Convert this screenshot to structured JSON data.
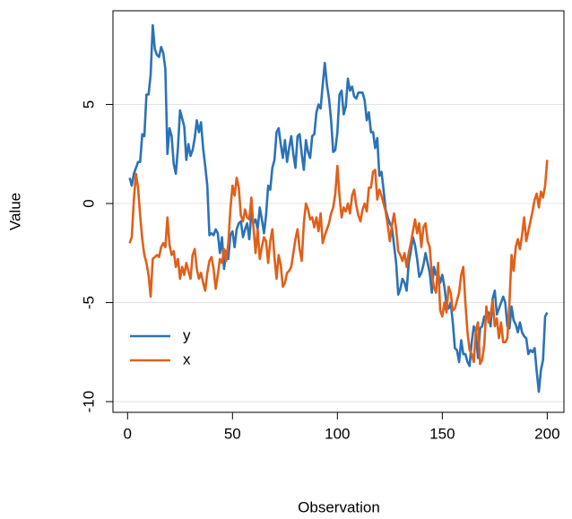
{
  "chart_data": {
    "type": "line",
    "xlabel": "Observation",
    "ylabel": "Value",
    "x": [
      1,
      2,
      3,
      4,
      5,
      6,
      7,
      8,
      9,
      10,
      11,
      12,
      13,
      14,
      15,
      16,
      17,
      18,
      19,
      20,
      21,
      22,
      23,
      24,
      25,
      26,
      27,
      28,
      29,
      30,
      31,
      32,
      33,
      34,
      35,
      36,
      37,
      38,
      39,
      40,
      41,
      42,
      43,
      44,
      45,
      46,
      47,
      48,
      49,
      50,
      51,
      52,
      53,
      54,
      55,
      56,
      57,
      58,
      59,
      60,
      61,
      62,
      63,
      64,
      65,
      66,
      67,
      68,
      69,
      70,
      71,
      72,
      73,
      74,
      75,
      76,
      77,
      78,
      79,
      80,
      81,
      82,
      83,
      84,
      85,
      86,
      87,
      88,
      89,
      90,
      91,
      92,
      93,
      94,
      95,
      96,
      97,
      98,
      99,
      100,
      101,
      102,
      103,
      104,
      105,
      106,
      107,
      108,
      109,
      110,
      111,
      112,
      113,
      114,
      115,
      116,
      117,
      118,
      119,
      120,
      121,
      122,
      123,
      124,
      125,
      126,
      127,
      128,
      129,
      130,
      131,
      132,
      133,
      134,
      135,
      136,
      137,
      138,
      139,
      140,
      141,
      142,
      143,
      144,
      145,
      146,
      147,
      148,
      149,
      150,
      151,
      152,
      153,
      154,
      155,
      156,
      157,
      158,
      159,
      160,
      161,
      162,
      163,
      164,
      165,
      166,
      167,
      168,
      169,
      170,
      171,
      172,
      173,
      174,
      175,
      176,
      177,
      178,
      179,
      180,
      181,
      182,
      183,
      184,
      185,
      186,
      187,
      188,
      189,
      190,
      191,
      192,
      193,
      194,
      195,
      196,
      197,
      198,
      199,
      200
    ],
    "series": [
      {
        "name": "y",
        "color": "#2b72b8",
        "values": [
          1.3,
          0.9,
          1.5,
          1.8,
          2.1,
          2.1,
          3.5,
          3.4,
          5.5,
          5.5,
          6.5,
          9.0,
          7.8,
          7.5,
          7.4,
          7.9,
          7.6,
          6.8,
          2.5,
          3.8,
          3.4,
          2.0,
          1.5,
          2.8,
          4.7,
          4.3,
          3.9,
          2.2,
          3.0,
          2.4,
          2.7,
          3.3,
          4.2,
          3.6,
          4.1,
          2.8,
          1.9,
          0.9,
          -1.6,
          -1.5,
          -1.6,
          -1.3,
          -1.5,
          -2.5,
          -1.7,
          -3.3,
          -2.4,
          -2.8,
          -1.6,
          -1.4,
          -2.2,
          -1.3,
          -1.0,
          -0.9,
          -1.7,
          -1.3,
          -1.0,
          -1.8,
          -0.5,
          -1.0,
          -0.8,
          -1.3,
          -0.2,
          -0.8,
          -1.5,
          -0.6,
          0.9,
          0.7,
          1.8,
          2.2,
          3.6,
          3.8,
          3.0,
          2.3,
          3.2,
          2.1,
          2.8,
          3.4,
          2.5,
          1.8,
          3.4,
          3.5,
          2.5,
          1.7,
          3.2,
          2.6,
          2.3,
          3.4,
          3.5,
          4.6,
          5.0,
          4.8,
          6.0,
          7.1,
          6.0,
          5.3,
          4.2,
          2.6,
          2.7,
          3.6,
          5.5,
          5.7,
          4.5,
          4.9,
          6.3,
          5.7,
          5.9,
          5.4,
          5.3,
          5.6,
          5.6,
          5.6,
          5.2,
          4.2,
          4.6,
          3.6,
          3.6,
          2.8,
          3.3,
          1.4,
          1.6,
          0.7,
          -0.3,
          -0.7,
          -1.0,
          -1.2,
          -2.1,
          -3.0,
          -4.6,
          -4.3,
          -3.8,
          -4.0,
          -4.4,
          -3.0,
          -2.4,
          -1.7,
          -2.1,
          -2.8,
          -3.7,
          -3.5,
          -3.1,
          -2.5,
          -3.0,
          -3.5,
          -4.5,
          -3.2,
          -3.6,
          -3.5,
          -4.0,
          -3.6,
          -4.2,
          -5.1,
          -5.3,
          -5.0,
          -6.0,
          -7.3,
          -7.4,
          -8.0,
          -6.9,
          -7.6,
          -7.6,
          -8.0,
          -8.2,
          -7.0,
          -6.2,
          -6.5,
          -7.8,
          -6.3,
          -6.2,
          -5.7,
          -5.8,
          -5.5,
          -6.2,
          -4.8,
          -4.4,
          -5.6,
          -5.3,
          -5.0,
          -4.7,
          -5.0,
          -6.2,
          -6.3,
          -5.2,
          -5.9,
          -6.1,
          -6.5,
          -6.0,
          -6.5,
          -6.7,
          -6.8,
          -7.6,
          -7.4,
          -7.5,
          -7.3,
          -8.5,
          -9.5,
          -8.4,
          -7.9,
          -5.7,
          -5.5
        ]
      },
      {
        "name": "x",
        "color": "#e0601a",
        "values": [
          -2.0,
          -1.7,
          0.2,
          1.5,
          0.8,
          -0.6,
          -1.8,
          -2.6,
          -3.0,
          -3.6,
          -4.7,
          -2.8,
          -2.7,
          -2.6,
          -2.7,
          -2.2,
          -2.0,
          -2.2,
          -0.7,
          -2.1,
          -2.6,
          -2.4,
          -3.2,
          -2.8,
          -3.8,
          -3.2,
          -3.6,
          -3.0,
          -3.4,
          -3.8,
          -2.6,
          -2.3,
          -3.3,
          -3.8,
          -3.5,
          -4.0,
          -4.4,
          -3.5,
          -2.9,
          -2.7,
          -3.3,
          -4.3,
          -3.6,
          -2.8,
          -3.0,
          -2.3,
          -2.9,
          -2.0,
          -0.3,
          0.9,
          0.4,
          1.3,
          0.8,
          -0.6,
          -0.9,
          -0.3,
          -0.7,
          -0.8,
          0.3,
          -1.2,
          -2.5,
          -1.3,
          -2.8,
          -2.2,
          -1.7,
          -1.9,
          -3.0,
          -1.9,
          -1.3,
          -2.7,
          -3.8,
          -2.6,
          -3.1,
          -4.2,
          -4.0,
          -3.5,
          -3.4,
          -3.2,
          -2.5,
          -1.8,
          -1.3,
          -2.3,
          -2.9,
          -1.0,
          0.0,
          -0.3,
          -0.8,
          -0.7,
          -1.2,
          -0.7,
          -1.4,
          -0.5,
          -2.0,
          -1.6,
          -1.3,
          -1.0,
          -0.5,
          -0.2,
          0.5,
          1.9,
          0.4,
          -0.7,
          -0.2,
          -0.4,
          0.0,
          -0.5,
          0.4,
          0.7,
          -0.1,
          -0.6,
          -0.9,
          -0.3,
          0.0,
          -0.4,
          0.8,
          0.8,
          1.6,
          1.7,
          0.2,
          0.7,
          0.4,
          0.0,
          -0.4,
          -1.1,
          -1.9,
          -1.1,
          -0.5,
          -1.3,
          -2.4,
          -2.6,
          -2.9,
          -2.5,
          -3.2,
          -2.5,
          -2.0,
          -1.4,
          -0.8,
          -1.5,
          -1.0,
          -2.2,
          -1.2,
          -1.0,
          -1.9,
          -2.2,
          -3.6,
          -4.2,
          -4.5,
          -3.0,
          -5.4,
          -5.7,
          -5.0,
          -5.5,
          -4.2,
          -4.5,
          -5.4,
          -5.3,
          -4.9,
          -4.5,
          -3.6,
          -3.2,
          -5.0,
          -6.5,
          -7.4,
          -7.6,
          -8.0,
          -6.4,
          -6.0,
          -8.1,
          -7.9,
          -7.1,
          -5.2,
          -6.0,
          -5.6,
          -4.9,
          -6.2,
          -5.8,
          -6.8,
          -6.0,
          -7.0,
          -7.0,
          -6.8,
          -5.0,
          -2.6,
          -3.4,
          -2.2,
          -1.8,
          -2.3,
          -1.6,
          -0.7,
          -1.9,
          -1.4,
          -0.9,
          -0.4,
          0.2,
          0.5,
          -0.2,
          0.6,
          0.3,
          0.9,
          2.2
        ]
      }
    ],
    "xlim": [
      -6.96,
      207.96
    ],
    "xticks": [
      0,
      50,
      100,
      150,
      200
    ],
    "ylim": [
      -10.54,
      9.73
    ],
    "yticks": [
      -10,
      -5,
      0,
      5
    ],
    "grid": true,
    "legend": "bottomleft"
  }
}
